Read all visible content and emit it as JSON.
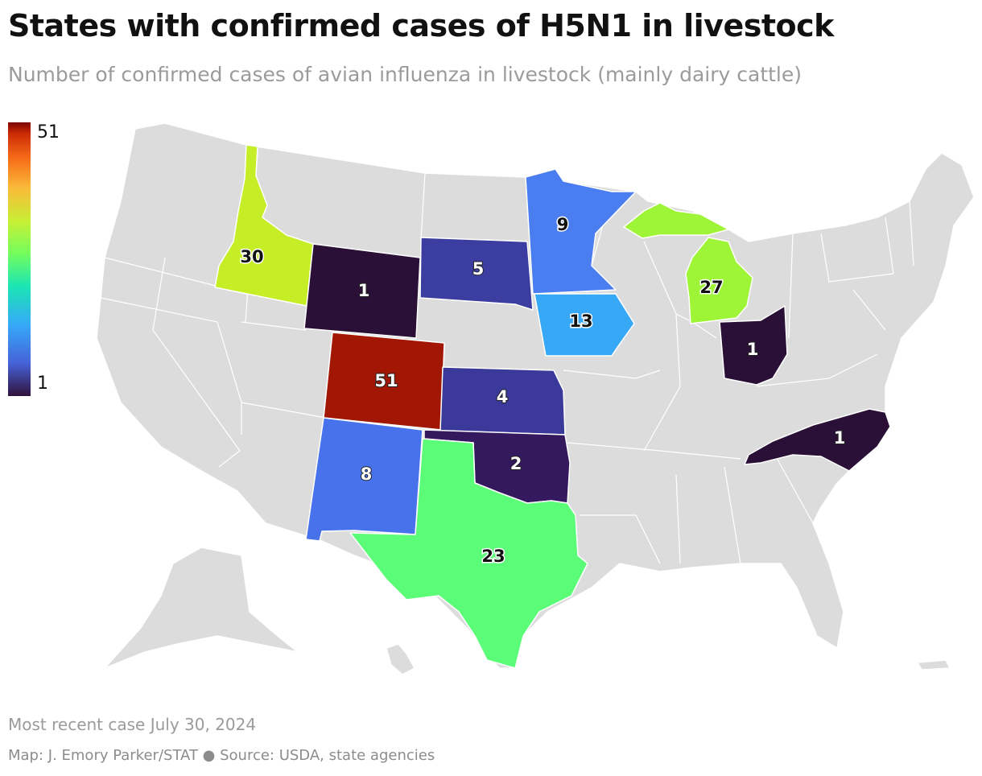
{
  "header": {
    "title": "States with confirmed cases of H5N1 in livestock",
    "subtitle": "Number of confirmed cases of avian influenza in livestock (mainly dairy cattle)"
  },
  "legend": {
    "max_label": "51",
    "min_label": "1"
  },
  "colors": {
    "base_state": "#dcdcdc",
    "border": "#ffffff",
    "scale": [
      "#30123b",
      "#4662d8",
      "#36a9f9",
      "#1be5b5",
      "#72fe5e",
      "#c8ef34",
      "#faba39",
      "#f66b19",
      "#cb2a04",
      "#7a0403"
    ]
  },
  "chart_data": {
    "type": "choropleth",
    "scale_range": [
      1,
      51
    ],
    "states": [
      {
        "state": "Idaho",
        "value": 30,
        "label": "30",
        "color": "#c5ee27"
      },
      {
        "state": "Wyoming",
        "value": 1,
        "label": "1",
        "color": "#2a1036"
      },
      {
        "state": "South Dakota",
        "value": 5,
        "label": "5",
        "color": "#3b3ea0"
      },
      {
        "state": "Minnesota",
        "value": 9,
        "label": "9",
        "color": "#4a7df0"
      },
      {
        "state": "Iowa",
        "value": 13,
        "label": "13",
        "color": "#36a8f5"
      },
      {
        "state": "Michigan",
        "value": 27,
        "label": "27",
        "color": "#9ef436"
      },
      {
        "state": "Ohio",
        "value": 1,
        "label": "1",
        "color": "#2a1036"
      },
      {
        "state": "Colorado",
        "value": 51,
        "label": "51",
        "color": "#a11704"
      },
      {
        "state": "Kansas",
        "value": 4,
        "label": "4",
        "color": "#3b3a9b"
      },
      {
        "state": "Oklahoma",
        "value": 2,
        "label": "2",
        "color": "#34195f"
      },
      {
        "state": "New Mexico",
        "value": 8,
        "label": "8",
        "color": "#4772ec"
      },
      {
        "state": "Texas",
        "value": 23,
        "label": "23",
        "color": "#5bfc78"
      },
      {
        "state": "North Carolina",
        "value": 1,
        "label": "1",
        "color": "#2a1036"
      }
    ]
  },
  "footer": {
    "note": "Most recent case July 30, 2024",
    "credit": "Map: J. Emory Parker/STAT ● Source: USDA, state agencies"
  }
}
